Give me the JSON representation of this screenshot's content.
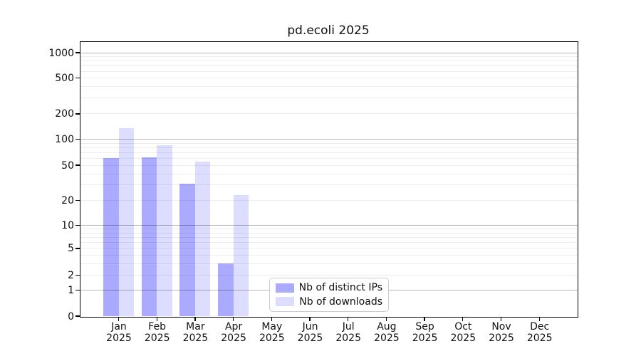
{
  "chart_data": {
    "type": "bar",
    "title": "pd.ecoli 2025",
    "yscale": "symlog",
    "ylim": [
      0,
      1300
    ],
    "ytick_values": [
      0,
      1,
      2,
      5,
      10,
      20,
      50,
      100,
      200,
      500,
      1000
    ],
    "ytick_labels": [
      "0",
      "1",
      "2",
      "5",
      "10",
      "20",
      "50",
      "100",
      "200",
      "500",
      "1000"
    ],
    "categories": [
      "Jan",
      "Feb",
      "Mar",
      "Apr",
      "May",
      "Jun",
      "Jul",
      "Aug",
      "Sep",
      "Oct",
      "Nov",
      "Dec"
    ],
    "category_year": "2025",
    "series": [
      {
        "name": "Nb of distinct IPs",
        "color": "#aaaaff",
        "values": [
          61,
          62,
          31,
          3,
          0,
          0,
          0,
          0,
          0,
          0,
          0,
          0
        ]
      },
      {
        "name": "Nb of downloads",
        "color": "#ddddff",
        "values": [
          135,
          85,
          55,
          23,
          0,
          0,
          0,
          0,
          0,
          0,
          0,
          0
        ]
      }
    ],
    "grid": "horizontal major and minor, grid on",
    "legend_position": "lower center",
    "xlabel": "",
    "ylabel": ""
  },
  "colors": {
    "distinct_ips": "#aaaaff",
    "downloads": "#ddddff",
    "grid_major": "#b8b8b8",
    "grid_minor": "#efefef",
    "axis": "#000000",
    "background": "#ffffff",
    "legend_border": "#cccccc"
  }
}
